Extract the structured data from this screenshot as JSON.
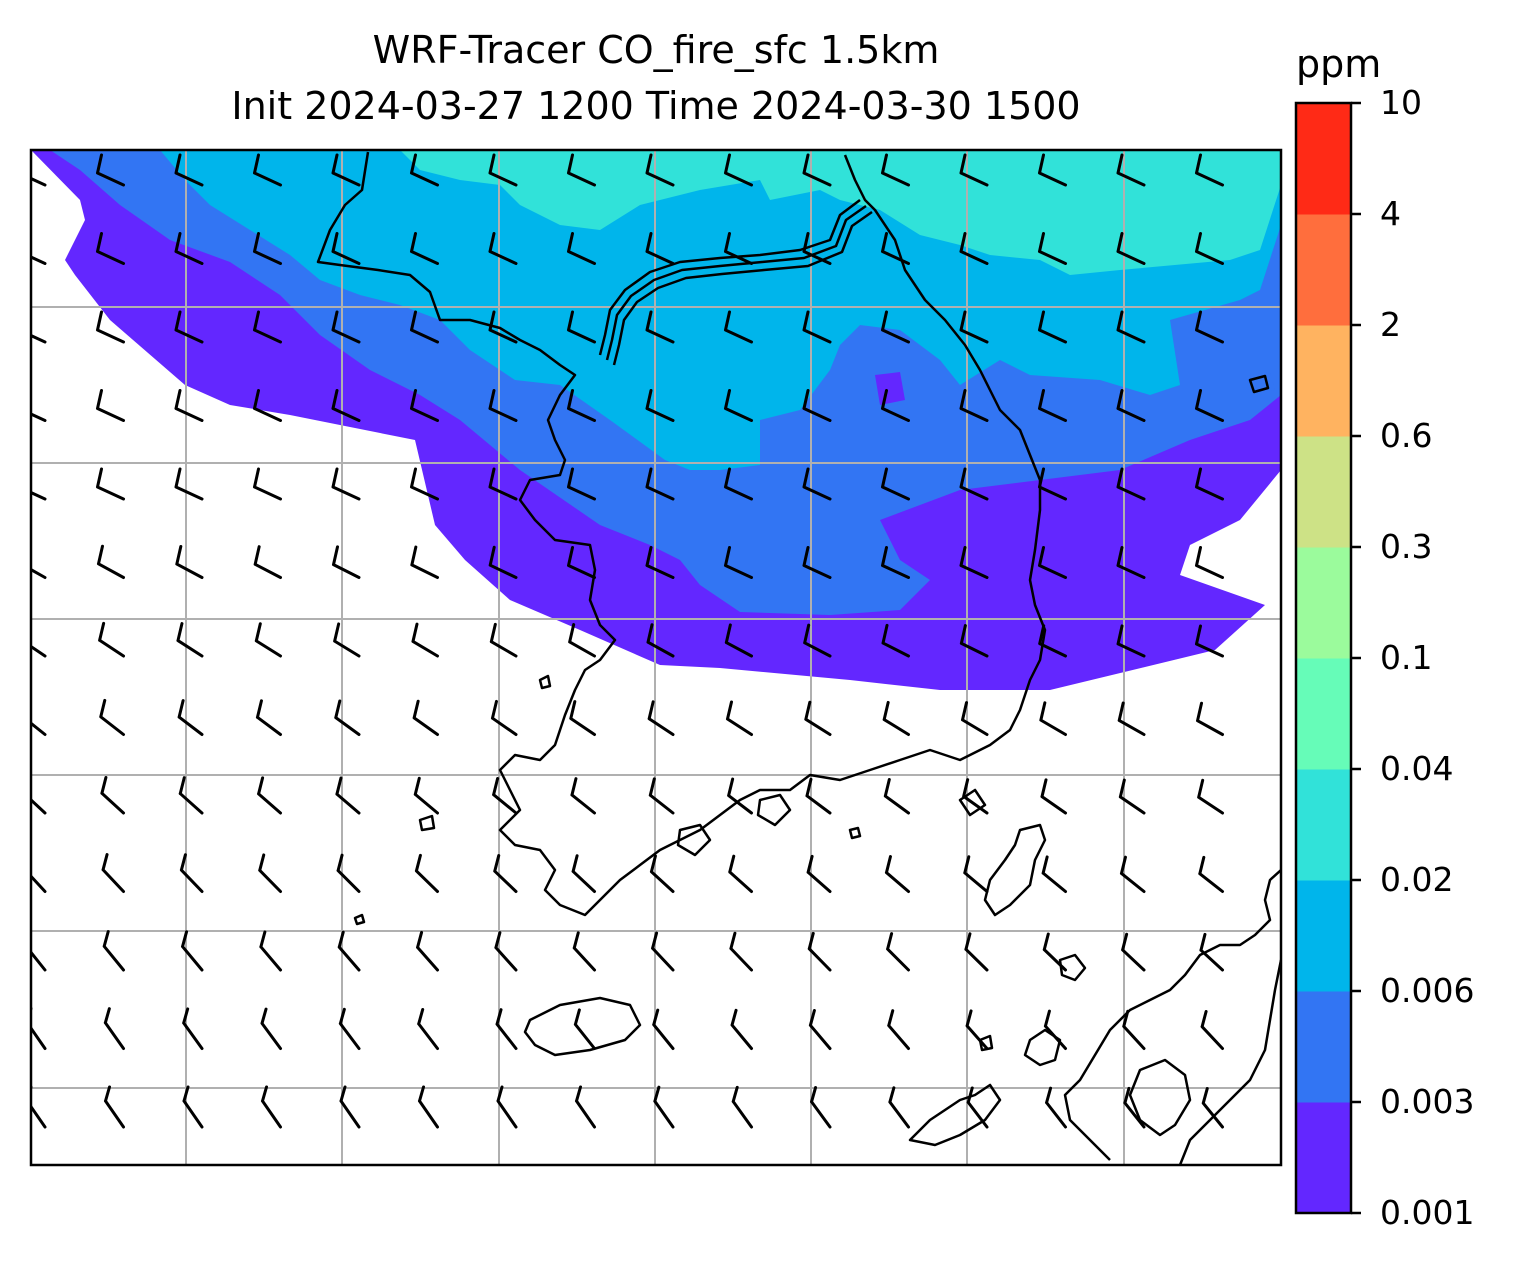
{
  "title": {
    "line1": "WRF-Tracer CO_fire_sfc 1.5km",
    "line2": "Init 2024-03-27 1200 Time 2024-03-30 1500"
  },
  "colorbar": {
    "unit": "ppm",
    "levels": [
      "0.001",
      "0.003",
      "0.006",
      "0.02",
      "0.04",
      "0.1",
      "0.3",
      "0.6",
      "2",
      "4",
      "10"
    ],
    "colors": [
      "#6327ff",
      "#3275f3",
      "#00b5eb",
      "#31e2d9",
      "#66fcb8",
      "#9bfb9c",
      "#cde286",
      "#ffb360",
      "#ff6e3d",
      "#ff2a16"
    ]
  },
  "map": {
    "plume_colors": {
      "level_0_001": "#6327ff",
      "level_0_003": "#3275f3",
      "level_0_006": "#00b5eb",
      "level_0_02": "#31e2d9"
    },
    "gridline_color": "#b0b0b0",
    "coastline_color": "#000000",
    "wind_barbs": "wind-barb-field"
  }
}
